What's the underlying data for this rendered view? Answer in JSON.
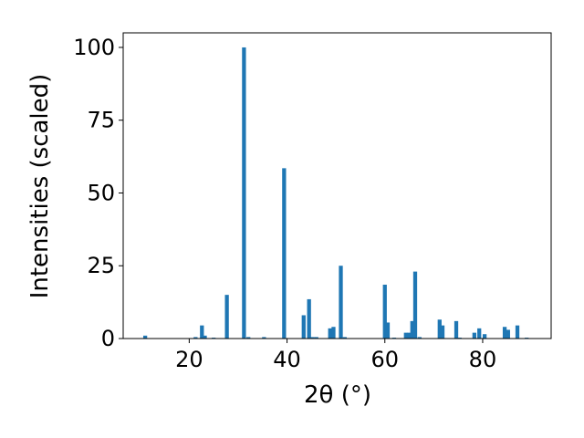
{
  "chart_data": {
    "type": "bar",
    "x": [
      11.0,
      21.3,
      22.6,
      23.2,
      25.0,
      27.7,
      31.2,
      32.1,
      35.3,
      39.4,
      43.4,
      44.5,
      45.2,
      46.0,
      48.8,
      49.5,
      51.0,
      51.8,
      60.0,
      60.6,
      61.9,
      64.3,
      65.0,
      65.6,
      66.2,
      67.1,
      71.2,
      71.8,
      74.6,
      75.3,
      78.3,
      79.3,
      80.4,
      84.5,
      85.2,
      87.1,
      89.0
    ],
    "values": [
      1,
      0.5,
      4.5,
      1,
      0.3,
      15,
      100,
      0.5,
      0.5,
      58.5,
      8,
      13.5,
      0.5,
      0.5,
      3.5,
      4,
      25,
      0.5,
      18.5,
      5.5,
      0.3,
      2,
      2,
      6,
      23,
      0.5,
      6.5,
      4.5,
      6,
      0.3,
      2,
      3.5,
      1.5,
      4,
      3,
      4.5,
      0.3
    ],
    "color": "#1f77b4",
    "xlabel": "2θ (°)",
    "ylabel": "Intensities (scaled)",
    "xlim": [
      6.5,
      94
    ],
    "xticks": [
      20,
      40,
      60,
      80
    ],
    "ylim": [
      0,
      105
    ],
    "yticks": [
      0,
      25,
      50,
      75,
      100
    ]
  }
}
